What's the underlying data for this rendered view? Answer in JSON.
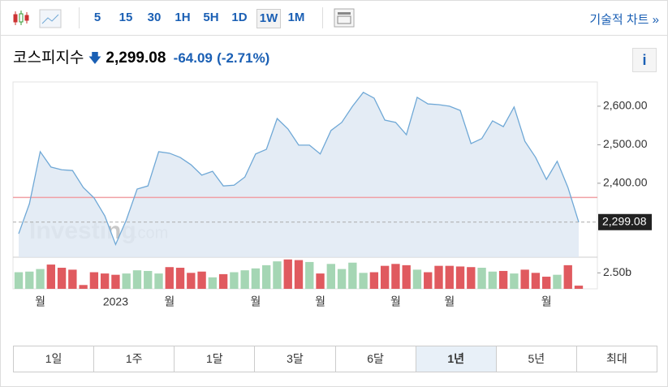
{
  "toolbar": {
    "intervals": [
      "5",
      "15",
      "30",
      "1H",
      "5H",
      "1D",
      "1W",
      "1M"
    ],
    "selected_interval": 6,
    "technical_link": "기술적 차트 »"
  },
  "header": {
    "title": "코스피지수",
    "price": "2,299.08",
    "change": "-64.09",
    "change_percent": "(-2.71%)",
    "info": "i"
  },
  "watermark": {
    "brand": "Investing",
    "suffix": ".com"
  },
  "chart_data": {
    "type": "line",
    "categories": [
      null,
      null,
      "월",
      null,
      null,
      null,
      null,
      null,
      null,
      "2023",
      null,
      null,
      null,
      null,
      "월",
      null,
      null,
      null,
      null,
      null,
      null,
      null,
      "월",
      null,
      null,
      null,
      null,
      null,
      "월",
      null,
      null,
      null,
      null,
      null,
      null,
      "월",
      null,
      null,
      null,
      null,
      "월",
      null,
      null,
      null,
      null,
      null,
      null,
      null,
      null,
      "월",
      null,
      null,
      null
    ],
    "series": [
      {
        "name": "코스피지수",
        "color": "#6fa8d6",
        "values": [
          2269,
          2347,
          2482,
          2442,
          2435,
          2433,
          2389,
          2362,
          2315,
          2241,
          2305,
          2385,
          2393,
          2482,
          2478,
          2467,
          2448,
          2421,
          2431,
          2393,
          2395,
          2416,
          2476,
          2488,
          2568,
          2541,
          2499,
          2499,
          2476,
          2537,
          2558,
          2600,
          2636,
          2621,
          2564,
          2558,
          2526,
          2623,
          2606,
          2604,
          2600,
          2589,
          2503,
          2516,
          2562,
          2547,
          2598,
          2509,
          2467,
          2410,
          2457,
          2389,
          2299.08
        ]
      }
    ],
    "last_value_label": "2,299.08",
    "reference_line": 2363.17,
    "ylim": [
      2208,
      2663
    ],
    "yticks": [
      {
        "value": 2400,
        "label": "2,400.00"
      },
      {
        "value": 2500,
        "label": "2,500.00"
      },
      {
        "value": 2600,
        "label": "2,600.00"
      }
    ],
    "volume": {
      "values": [
        2.6,
        2.7,
        3.1,
        3.8,
        3.3,
        3.0,
        0.6,
        2.6,
        2.4,
        2.2,
        2.4,
        2.9,
        2.8,
        2.4,
        3.4,
        3.3,
        2.5,
        2.7,
        1.8,
        2.3,
        2.6,
        2.9,
        3.2,
        3.7,
        4.3,
        4.6,
        4.5,
        4.2,
        2.4,
        3.9,
        3.1,
        4.1,
        2.5,
        2.6,
        3.6,
        3.9,
        3.7,
        3.0,
        2.6,
        3.6,
        3.6,
        3.5,
        3.4,
        3.3,
        2.7,
        2.8,
        2.4,
        3.0,
        2.5,
        1.9,
        2.2,
        3.7,
        0.5
      ],
      "up_color": "#a5d6b4",
      "down_color": "#e05a5f",
      "ylim": [
        0,
        4.7
      ],
      "yticks": [
        {
          "value": 2.5,
          "label": "2.50b"
        }
      ]
    }
  },
  "ranges": {
    "items": [
      "1일",
      "1주",
      "1달",
      "3달",
      "6달",
      "1년",
      "5년",
      "최대"
    ],
    "selected": 5
  }
}
